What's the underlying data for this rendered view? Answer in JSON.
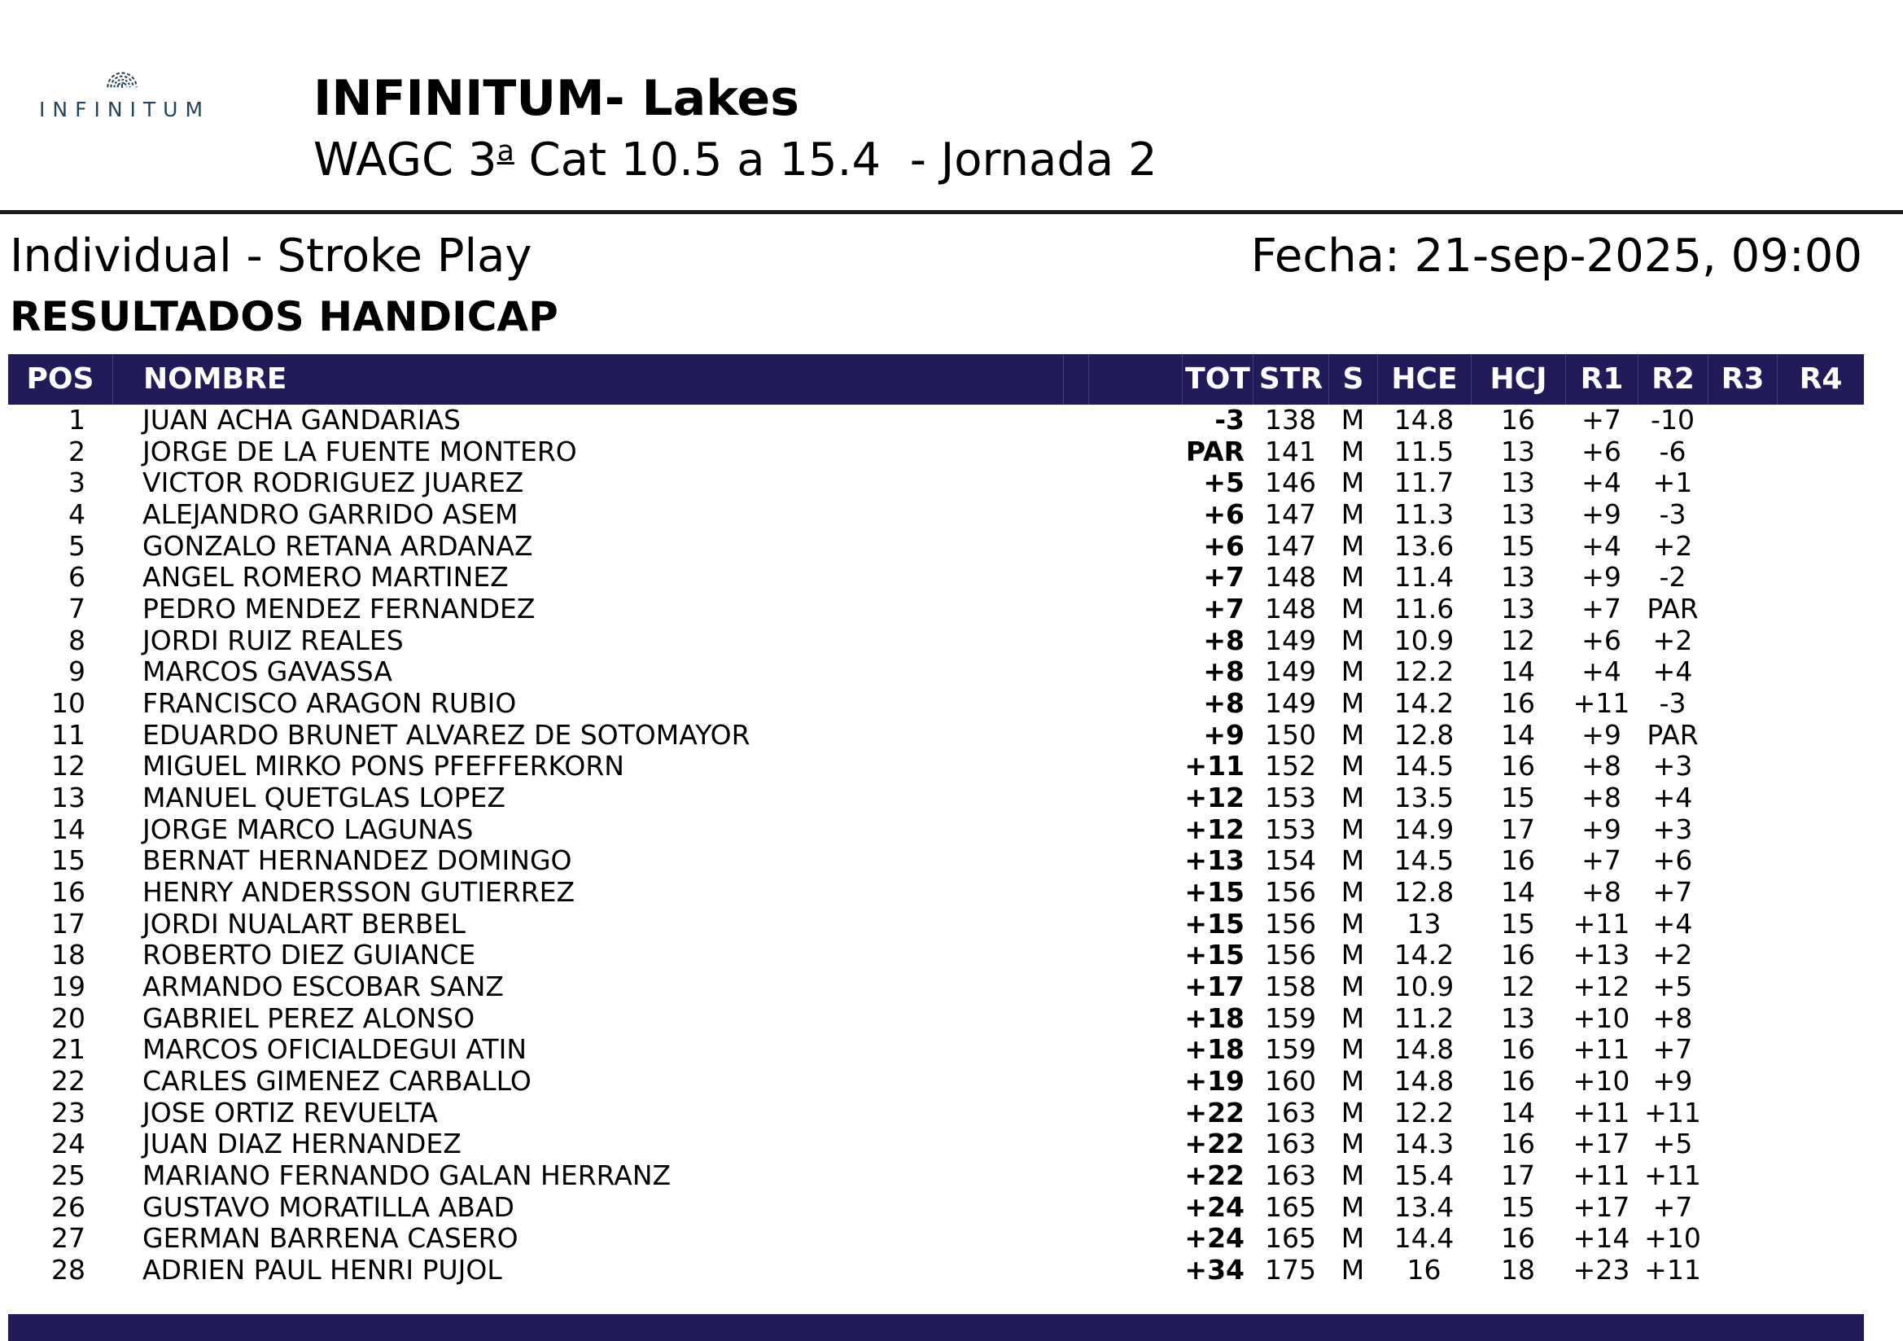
{
  "header": {
    "logo_text": "INFINITUM",
    "title": "INFINITUM- Lakes",
    "subtitle": {
      "pre": "WAGC 3",
      "ordinal": "a",
      "post": " Cat 10.5 a 15.4  - Jornada 2"
    }
  },
  "meta": {
    "left": "Individual - Stroke Play",
    "right": "Fecha: 21-sep-2025, 09:00"
  },
  "section_title": "RESULTADOS HANDICAP",
  "colors": {
    "header_bar_navy": "#221b59",
    "footer_bar_navy": "#221b59",
    "logo_blue": "#25425d",
    "rule_black": "#1b1b1b",
    "header_text": "#ffffff",
    "body_text": "#000000"
  },
  "table": {
    "columns": [
      "POS",
      "NOMBRE",
      "TOT",
      "STR",
      "S",
      "HCE",
      "HCJ",
      "R1",
      "R2",
      "R3",
      "R4"
    ],
    "rows": [
      {
        "pos": "1",
        "name": "JUAN ACHA GANDARIAS",
        "tot": "-3",
        "str": "138",
        "s": "M",
        "hce": "14.8",
        "hcj": "16",
        "r1": "+7",
        "r2": "-10",
        "r3": "",
        "r4": ""
      },
      {
        "pos": "2",
        "name": "JORGE DE LA FUENTE MONTERO",
        "tot": "PAR",
        "str": "141",
        "s": "M",
        "hce": "11.5",
        "hcj": "13",
        "r1": "+6",
        "r2": "-6",
        "r3": "",
        "r4": ""
      },
      {
        "pos": "3",
        "name": "VICTOR RODRIGUEZ JUAREZ",
        "tot": "+5",
        "str": "146",
        "s": "M",
        "hce": "11.7",
        "hcj": "13",
        "r1": "+4",
        "r2": "+1",
        "r3": "",
        "r4": ""
      },
      {
        "pos": "4",
        "name": "ALEJANDRO GARRIDO ASEM",
        "tot": "+6",
        "str": "147",
        "s": "M",
        "hce": "11.3",
        "hcj": "13",
        "r1": "+9",
        "r2": "-3",
        "r3": "",
        "r4": ""
      },
      {
        "pos": "5",
        "name": "GONZALO RETANA ARDANAZ",
        "tot": "+6",
        "str": "147",
        "s": "M",
        "hce": "13.6",
        "hcj": "15",
        "r1": "+4",
        "r2": "+2",
        "r3": "",
        "r4": ""
      },
      {
        "pos": "6",
        "name": "ANGEL ROMERO MARTINEZ",
        "tot": "+7",
        "str": "148",
        "s": "M",
        "hce": "11.4",
        "hcj": "13",
        "r1": "+9",
        "r2": "-2",
        "r3": "",
        "r4": ""
      },
      {
        "pos": "7",
        "name": "PEDRO MENDEZ FERNANDEZ",
        "tot": "+7",
        "str": "148",
        "s": "M",
        "hce": "11.6",
        "hcj": "13",
        "r1": "+7",
        "r2": "PAR",
        "r3": "",
        "r4": ""
      },
      {
        "pos": "8",
        "name": "JORDI RUIZ REALES",
        "tot": "+8",
        "str": "149",
        "s": "M",
        "hce": "10.9",
        "hcj": "12",
        "r1": "+6",
        "r2": "+2",
        "r3": "",
        "r4": ""
      },
      {
        "pos": "9",
        "name": "MARCOS GAVASSA",
        "tot": "+8",
        "str": "149",
        "s": "M",
        "hce": "12.2",
        "hcj": "14",
        "r1": "+4",
        "r2": "+4",
        "r3": "",
        "r4": ""
      },
      {
        "pos": "10",
        "name": "FRANCISCO ARAGON RUBIO",
        "tot": "+8",
        "str": "149",
        "s": "M",
        "hce": "14.2",
        "hcj": "16",
        "r1": "+11",
        "r2": "-3",
        "r3": "",
        "r4": ""
      },
      {
        "pos": "11",
        "name": "EDUARDO BRUNET ALVAREZ DE SOTOMAYOR",
        "tot": "+9",
        "str": "150",
        "s": "M",
        "hce": "12.8",
        "hcj": "14",
        "r1": "+9",
        "r2": "PAR",
        "r3": "",
        "r4": ""
      },
      {
        "pos": "12",
        "name": "MIGUEL MIRKO PONS PFEFFERKORN",
        "tot": "+11",
        "str": "152",
        "s": "M",
        "hce": "14.5",
        "hcj": "16",
        "r1": "+8",
        "r2": "+3",
        "r3": "",
        "r4": ""
      },
      {
        "pos": "13",
        "name": "MANUEL QUETGLAS LOPEZ",
        "tot": "+12",
        "str": "153",
        "s": "M",
        "hce": "13.5",
        "hcj": "15",
        "r1": "+8",
        "r2": "+4",
        "r3": "",
        "r4": ""
      },
      {
        "pos": "14",
        "name": "JORGE MARCO LAGUNAS",
        "tot": "+12",
        "str": "153",
        "s": "M",
        "hce": "14.9",
        "hcj": "17",
        "r1": "+9",
        "r2": "+3",
        "r3": "",
        "r4": ""
      },
      {
        "pos": "15",
        "name": "BERNAT HERNANDEZ DOMINGO",
        "tot": "+13",
        "str": "154",
        "s": "M",
        "hce": "14.5",
        "hcj": "16",
        "r1": "+7",
        "r2": "+6",
        "r3": "",
        "r4": ""
      },
      {
        "pos": "16",
        "name": "HENRY ANDERSSON GUTIERREZ",
        "tot": "+15",
        "str": "156",
        "s": "M",
        "hce": "12.8",
        "hcj": "14",
        "r1": "+8",
        "r2": "+7",
        "r3": "",
        "r4": ""
      },
      {
        "pos": "17",
        "name": "JORDI NUALART BERBEL",
        "tot": "+15",
        "str": "156",
        "s": "M",
        "hce": "13",
        "hcj": "15",
        "r1": "+11",
        "r2": "+4",
        "r3": "",
        "r4": ""
      },
      {
        "pos": "18",
        "name": "ROBERTO DIEZ GUIANCE",
        "tot": "+15",
        "str": "156",
        "s": "M",
        "hce": "14.2",
        "hcj": "16",
        "r1": "+13",
        "r2": "+2",
        "r3": "",
        "r4": ""
      },
      {
        "pos": "19",
        "name": "ARMANDO ESCOBAR SANZ",
        "tot": "+17",
        "str": "158",
        "s": "M",
        "hce": "10.9",
        "hcj": "12",
        "r1": "+12",
        "r2": "+5",
        "r3": "",
        "r4": ""
      },
      {
        "pos": "20",
        "name": "GABRIEL PEREZ ALONSO",
        "tot": "+18",
        "str": "159",
        "s": "M",
        "hce": "11.2",
        "hcj": "13",
        "r1": "+10",
        "r2": "+8",
        "r3": "",
        "r4": ""
      },
      {
        "pos": "21",
        "name": "MARCOS OFICIALDEGUI ATIN",
        "tot": "+18",
        "str": "159",
        "s": "M",
        "hce": "14.8",
        "hcj": "16",
        "r1": "+11",
        "r2": "+7",
        "r3": "",
        "r4": ""
      },
      {
        "pos": "22",
        "name": "CARLES GIMENEZ CARBALLO",
        "tot": "+19",
        "str": "160",
        "s": "M",
        "hce": "14.8",
        "hcj": "16",
        "r1": "+10",
        "r2": "+9",
        "r3": "",
        "r4": ""
      },
      {
        "pos": "23",
        "name": "JOSE ORTIZ REVUELTA",
        "tot": "+22",
        "str": "163",
        "s": "M",
        "hce": "12.2",
        "hcj": "14",
        "r1": "+11",
        "r2": "+11",
        "r3": "",
        "r4": ""
      },
      {
        "pos": "24",
        "name": "JUAN DIAZ HERNANDEZ",
        "tot": "+22",
        "str": "163",
        "s": "M",
        "hce": "14.3",
        "hcj": "16",
        "r1": "+17",
        "r2": "+5",
        "r3": "",
        "r4": ""
      },
      {
        "pos": "25",
        "name": "MARIANO FERNANDO GALAN HERRANZ",
        "tot": "+22",
        "str": "163",
        "s": "M",
        "hce": "15.4",
        "hcj": "17",
        "r1": "+11",
        "r2": "+11",
        "r3": "",
        "r4": ""
      },
      {
        "pos": "26",
        "name": "GUSTAVO MORATILLA ABAD",
        "tot": "+24",
        "str": "165",
        "s": "M",
        "hce": "13.4",
        "hcj": "15",
        "r1": "+17",
        "r2": "+7",
        "r3": "",
        "r4": ""
      },
      {
        "pos": "27",
        "name": "GERMAN BARRENA CASERO",
        "tot": "+24",
        "str": "165",
        "s": "M",
        "hce": "14.4",
        "hcj": "16",
        "r1": "+14",
        "r2": "+10",
        "r3": "",
        "r4": ""
      },
      {
        "pos": "28",
        "name": "ADRIEN PAUL HENRI PUJOL",
        "tot": "+34",
        "str": "175",
        "s": "M",
        "hce": "16",
        "hcj": "18",
        "r1": "+23",
        "r2": "+11",
        "r3": "",
        "r4": ""
      }
    ]
  }
}
